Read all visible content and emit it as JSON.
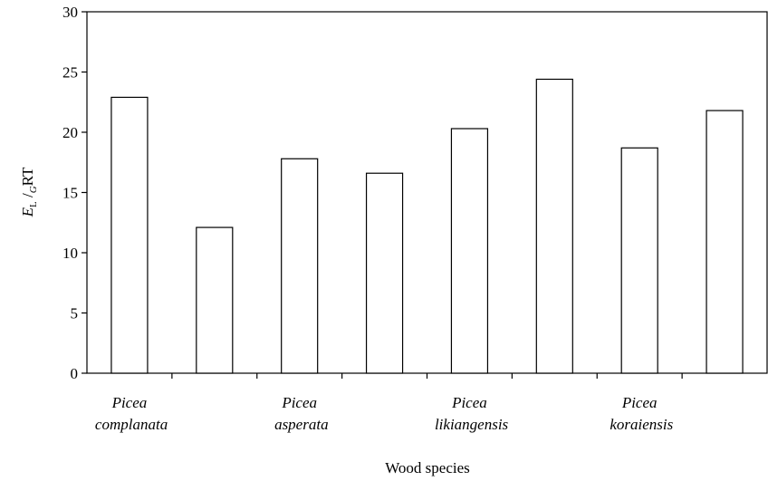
{
  "chart_data": {
    "type": "bar",
    "categories": [
      "Picea complanata",
      null,
      "Picea asperata",
      null,
      "Picea likiangensis",
      null,
      "Picea koraiensis",
      null
    ],
    "values": [
      22.9,
      12.1,
      17.8,
      16.6,
      20.3,
      24.4,
      18.7,
      21.8
    ],
    "color": "#ffffff",
    "ylim": [
      0,
      30
    ],
    "yticks": [
      0,
      5,
      10,
      15,
      20,
      25,
      30
    ],
    "xlabel": "Wood species",
    "ylabel": [
      "E",
      "L",
      " /",
      "G",
      "RT"
    ]
  }
}
